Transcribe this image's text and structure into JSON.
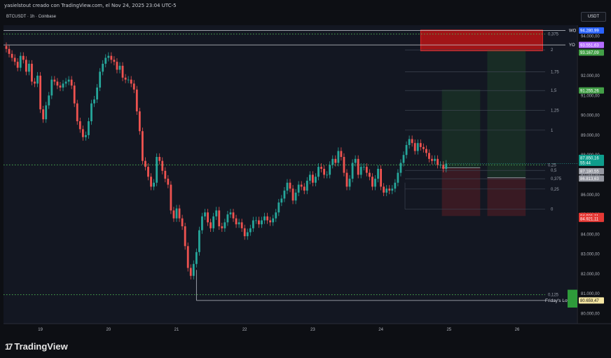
{
  "header": {
    "attribution": "yasielstout creado con TradingView.com, el Nov 24, 2025 23:04 UTC-5",
    "symbol_line": "BTCUSDT · 1h · Coinbase"
  },
  "currency_button": "USDT",
  "branding": {
    "logo_mark": "17",
    "logo_text": "TradingView"
  },
  "chart_data": {
    "type": "candlestick",
    "symbol": "BTCUSDT",
    "interval": "1h",
    "exchange": "Coinbase",
    "ylim": [
      79500,
      95300
    ],
    "y_ticks": [
      {
        "value": 80000,
        "label": "80.000,00"
      },
      {
        "value": 81000,
        "label": "81.000,00"
      },
      {
        "value": 82000,
        "label": "82.000,00"
      },
      {
        "value": 83000,
        "label": "83.000,00"
      },
      {
        "value": 84000,
        "label": "84.000,00"
      },
      {
        "value": 85000,
        "label": "85.000,00"
      },
      {
        "value": 86000,
        "label": "86.000,00"
      },
      {
        "value": 87000,
        "label": "87.000,00"
      },
      {
        "value": 88000,
        "label": "88.000,00"
      },
      {
        "value": 89000,
        "label": "89.000,00"
      },
      {
        "value": 90000,
        "label": "90.000,00"
      },
      {
        "value": 91000,
        "label": "91.000,00"
      },
      {
        "value": 92000,
        "label": "92.000,00"
      },
      {
        "value": 94000,
        "label": "94.000,00"
      }
    ],
    "x_ticks": [
      {
        "t": 12,
        "label": "19"
      },
      {
        "t": 36,
        "label": "20"
      },
      {
        "t": 60,
        "label": "21"
      },
      {
        "t": 84,
        "label": "22"
      },
      {
        "t": 108,
        "label": "23"
      },
      {
        "t": 132,
        "label": "24"
      },
      {
        "t": 156,
        "label": "25"
      },
      {
        "t": 180,
        "label": "26"
      }
    ],
    "closes": [
      93350,
      93100,
      92900,
      92700,
      92400,
      93000,
      92800,
      92200,
      92600,
      91700,
      91600,
      92000,
      90300,
      89800,
      90500,
      91000,
      91800,
      91700,
      91500,
      91400,
      91600,
      91700,
      91800,
      91500,
      90600,
      89700,
      89300,
      88900,
      89000,
      89700,
      90600,
      90800,
      91400,
      92200,
      92600,
      92900,
      93000,
      92800,
      92700,
      92300,
      92500,
      91900,
      91800,
      91800,
      91600,
      91300,
      90200,
      89200,
      87700,
      87400,
      86900,
      86400,
      86600,
      87900,
      87700,
      87200,
      86800,
      86500,
      85200,
      84800,
      85300,
      84800,
      84400,
      83400,
      82300,
      81900,
      82500,
      83100,
      84200,
      84900,
      85100,
      84600,
      84300,
      84900,
      85200,
      84400,
      84300,
      84600,
      85000,
      85100,
      84800,
      84500,
      84600,
      84300,
      83900,
      84100,
      84300,
      84700,
      84700,
      84500,
      84700,
      84900,
      84700,
      84600,
      84800,
      85100,
      85600,
      85800,
      86200,
      86600,
      86300,
      85700,
      86100,
      86500,
      86400,
      86200,
      86700,
      87000,
      86600,
      86900,
      87400,
      87300,
      87000,
      87000,
      87500,
      87800,
      87600,
      88200,
      87900,
      87100,
      86400,
      86800,
      87600,
      87800,
      87000,
      87400,
      87400,
      87100,
      86900,
      86400,
      86800,
      87300,
      86400,
      86100,
      86300,
      86200,
      86300,
      86600,
      87100,
      87600,
      88000,
      88500,
      88800,
      88600,
      88200,
      88600,
      88400,
      88300,
      88100,
      87800,
      87700,
      87800,
      87500,
      87500,
      87300,
      87560
    ],
    "price_levels": [
      {
        "label": "WO",
        "value": 94280.99,
        "tag": "94.280,99",
        "color": "#2962ff"
      },
      {
        "label": "YO",
        "value": 93551.63,
        "tag": "93.551,63",
        "color": "#b46cff"
      },
      {
        "label": "Friday's Low",
        "value": 80659.47,
        "tag": "80.659,47",
        "color": "#f5e6a3"
      }
    ],
    "price_tags": [
      {
        "value": 93167.09,
        "text": "93.167,09",
        "color": "#43a047"
      },
      {
        "value": 91255.26,
        "text": "91.255,26",
        "color": "#43a047"
      },
      {
        "value": 87850.16,
        "text": "87.850,16",
        "color": "#0e9d8c",
        "extra": "55:44"
      },
      {
        "value": 87180.55,
        "text": "87.180,55",
        "color": "#9598a1"
      },
      {
        "value": 86813.63,
        "text": "86.813,63",
        "color": "#9598a1"
      },
      {
        "value": 84921.11,
        "text": "84.921,11",
        "color": "#e53935"
      },
      {
        "value": 84921.11,
        "text": "84.921,11",
        "color": "#e53935"
      }
    ],
    "fib_levels": [
      {
        "label": "2",
        "value": 93300
      },
      {
        "label": "1,75",
        "value": 92200
      },
      {
        "label": "1,5",
        "value": 91250
      },
      {
        "label": "1,25",
        "value": 90250
      },
      {
        "label": "1",
        "value": 89250
      },
      {
        "label": "0,5",
        "value": 87220
      },
      {
        "label": "0,375",
        "value": 86800
      },
      {
        "label": "0,25",
        "value": 86280
      },
      {
        "label": "0",
        "value": 85260
      }
    ],
    "dotted_levels": [
      {
        "label": "0,375",
        "value": 94100
      },
      {
        "label": "0,25",
        "value": 87500
      },
      {
        "label": "0,125",
        "value": 80950
      }
    ],
    "positions": [
      {
        "t0": 153.5,
        "t1": 167,
        "entry": 87350,
        "target": 91300,
        "stop": 84920
      },
      {
        "t0": 169.5,
        "t1": 183,
        "entry": 86850,
        "target": 93300,
        "stop": 84920
      }
    ],
    "supply_zone": {
      "t0": 146,
      "t1": 189,
      "top": 94300,
      "bottom": 93250
    },
    "support_line": {
      "t0": 67,
      "t1": 189,
      "value": 80659.47
    }
  }
}
